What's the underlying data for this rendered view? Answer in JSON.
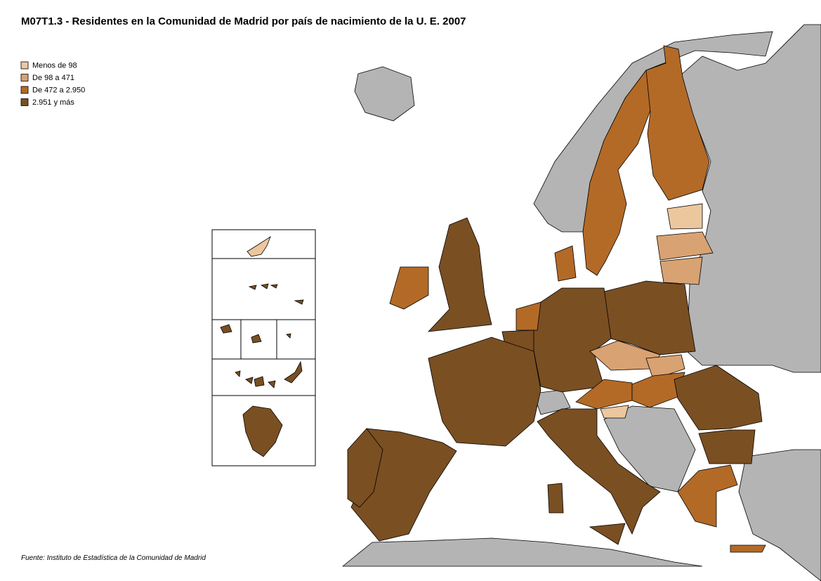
{
  "title": "M07T1.3 - Residentes en la Comunidad de Madrid por país de nacimiento de la U. E. 2007",
  "legend": [
    {
      "label": "Menos de 98",
      "color": "#ecc79e"
    },
    {
      "label": "De 98 a 471",
      "color": "#d9a272"
    },
    {
      "label": "De 472 a 2.950",
      "color": "#b36a26"
    },
    {
      "label": "2.951 y más",
      "color": "#7a4f22"
    }
  ],
  "source": "Fuente: Instituto de Estadística de la Comunidad de Madrid"
}
